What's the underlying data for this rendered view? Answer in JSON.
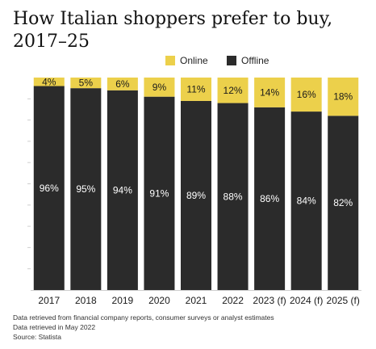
{
  "chart_data": {
    "type": "bar",
    "stacked": true,
    "title": "How Italian shoppers prefer to buy, 2017–25",
    "categories": [
      "2017",
      "2018",
      "2019",
      "2020",
      "2021",
      "2022",
      "2023 (f)",
      "2024 (f)",
      "2025 (f)"
    ],
    "series": [
      {
        "name": "Offline",
        "color": "#2b2b2b",
        "label_color": "#ffffff",
        "values": [
          96,
          95,
          94,
          91,
          89,
          88,
          86,
          84,
          82
        ]
      },
      {
        "name": "Online",
        "color": "#ecd04b",
        "label_color": "#1a1a1a",
        "values": [
          4,
          5,
          6,
          9,
          11,
          12,
          14,
          16,
          18
        ]
      }
    ],
    "legend": {
      "position": "top",
      "order": [
        "Online",
        "Offline"
      ]
    },
    "ylim": [
      0,
      100
    ],
    "value_suffix": "%",
    "grid": false
  },
  "footer": {
    "note1": "Data retrieved from financial company reports, consumer surveys or analyst estimates",
    "note2": "Data retrieved in May 2022",
    "source": "Source: Statista"
  }
}
